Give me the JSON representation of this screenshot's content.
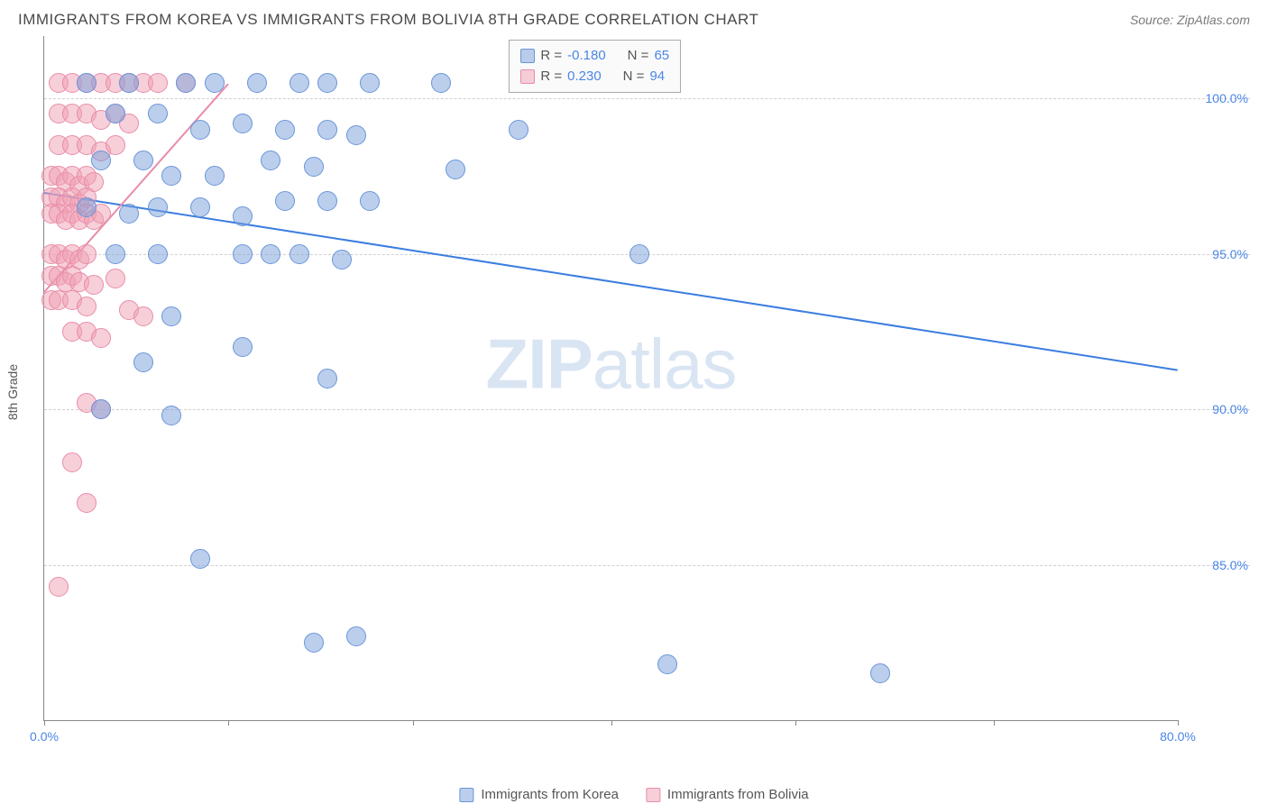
{
  "header": {
    "title": "IMMIGRANTS FROM KOREA VS IMMIGRANTS FROM BOLIVIA 8TH GRADE CORRELATION CHART",
    "source": "Source: ZipAtlas.com"
  },
  "chart": {
    "type": "scatter",
    "ylabel": "8th Grade",
    "xlim": [
      0,
      80
    ],
    "ylim": [
      80,
      102
    ],
    "background_color": "#ffffff",
    "grid_color": "#d0d0d0",
    "yticks": [
      85,
      90,
      95,
      100
    ],
    "ytick_labels": [
      "85.0%",
      "90.0%",
      "95.0%",
      "100.0%"
    ],
    "xticks": [
      0,
      13,
      26,
      40,
      53,
      67,
      80
    ],
    "xtick_labels_shown": {
      "0": "0.0%",
      "80": "80.0%"
    },
    "marker_radius": 11,
    "series": [
      {
        "name": "Immigrants from Korea",
        "color_fill": "rgba(120,160,220,0.5)",
        "color_stroke": "#6a95d8",
        "trend_color": "#3b7de0",
        "R": "-0.180",
        "N": "65",
        "trend": {
          "x1": 0,
          "y1": 97.0,
          "x2": 80,
          "y2": 91.3
        },
        "points": [
          [
            3,
            100.5
          ],
          [
            6,
            100.5
          ],
          [
            10,
            100.5
          ],
          [
            12,
            100.5
          ],
          [
            15,
            100.5
          ],
          [
            18,
            100.5
          ],
          [
            20,
            100.5
          ],
          [
            23,
            100.5
          ],
          [
            28,
            100.5
          ],
          [
            5,
            99.5
          ],
          [
            8,
            99.5
          ],
          [
            11,
            99.0
          ],
          [
            14,
            99.2
          ],
          [
            17,
            99.0
          ],
          [
            20,
            99.0
          ],
          [
            22,
            98.8
          ],
          [
            4,
            98.0
          ],
          [
            7,
            98.0
          ],
          [
            9,
            97.5
          ],
          [
            12,
            97.5
          ],
          [
            16,
            98.0
          ],
          [
            19,
            97.8
          ],
          [
            29,
            97.7
          ],
          [
            33.5,
            99.0
          ],
          [
            42,
            95.0
          ],
          [
            3,
            96.5
          ],
          [
            6,
            96.3
          ],
          [
            8,
            96.5
          ],
          [
            11,
            96.5
          ],
          [
            14,
            96.2
          ],
          [
            17,
            96.7
          ],
          [
            20,
            96.7
          ],
          [
            23,
            96.7
          ],
          [
            5,
            95.0
          ],
          [
            8,
            95.0
          ],
          [
            14,
            95.0
          ],
          [
            16,
            95.0
          ],
          [
            18,
            95.0
          ],
          [
            21,
            94.8
          ],
          [
            9,
            93.0
          ],
          [
            14,
            92.0
          ],
          [
            7,
            91.5
          ],
          [
            20,
            91.0
          ],
          [
            4,
            90.0
          ],
          [
            9,
            89.8
          ],
          [
            11,
            85.2
          ],
          [
            19,
            82.5
          ],
          [
            22,
            82.7
          ],
          [
            59,
            81.5
          ],
          [
            44,
            81.8
          ]
        ]
      },
      {
        "name": "Immigrants from Bolivia",
        "color_fill": "rgba(240,160,180,0.5)",
        "color_stroke": "#e88ca8",
        "trend_color": "#e88ca8",
        "R": "0.230",
        "N": "94",
        "trend": {
          "x1": 0,
          "y1": 93.8,
          "x2": 13,
          "y2": 100.5
        },
        "points": [
          [
            1,
            100.5
          ],
          [
            2,
            100.5
          ],
          [
            3,
            100.5
          ],
          [
            4,
            100.5
          ],
          [
            5,
            100.5
          ],
          [
            6,
            100.5
          ],
          [
            7,
            100.5
          ],
          [
            8,
            100.5
          ],
          [
            10,
            100.5
          ],
          [
            1,
            99.5
          ],
          [
            2,
            99.5
          ],
          [
            3,
            99.5
          ],
          [
            4,
            99.3
          ],
          [
            5,
            99.5
          ],
          [
            6,
            99.2
          ],
          [
            1,
            98.5
          ],
          [
            2,
            98.5
          ],
          [
            3,
            98.5
          ],
          [
            4,
            98.3
          ],
          [
            5,
            98.5
          ],
          [
            0.5,
            97.5
          ],
          [
            1,
            97.5
          ],
          [
            1.5,
            97.3
          ],
          [
            2,
            97.5
          ],
          [
            2.5,
            97.2
          ],
          [
            3,
            97.5
          ],
          [
            3.5,
            97.3
          ],
          [
            0.5,
            96.8
          ],
          [
            1,
            96.8
          ],
          [
            1.5,
            96.6
          ],
          [
            2,
            96.8
          ],
          [
            2.5,
            96.6
          ],
          [
            3,
            96.8
          ],
          [
            0.5,
            96.3
          ],
          [
            1,
            96.3
          ],
          [
            1.5,
            96.1
          ],
          [
            2,
            96.3
          ],
          [
            2.5,
            96.1
          ],
          [
            3,
            96.3
          ],
          [
            3.5,
            96.1
          ],
          [
            4,
            96.3
          ],
          [
            0.5,
            95.0
          ],
          [
            1,
            95.0
          ],
          [
            1.5,
            94.8
          ],
          [
            2,
            95.0
          ],
          [
            2.5,
            94.8
          ],
          [
            3,
            95.0
          ],
          [
            0.5,
            94.3
          ],
          [
            1,
            94.3
          ],
          [
            1.5,
            94.1
          ],
          [
            2,
            94.3
          ],
          [
            2.5,
            94.1
          ],
          [
            3.5,
            94.0
          ],
          [
            5,
            94.2
          ],
          [
            0.5,
            93.5
          ],
          [
            1,
            93.5
          ],
          [
            2,
            93.5
          ],
          [
            3,
            93.3
          ],
          [
            6,
            93.2
          ],
          [
            7,
            93.0
          ],
          [
            2,
            92.5
          ],
          [
            3,
            92.5
          ],
          [
            4,
            92.3
          ],
          [
            3,
            90.2
          ],
          [
            4,
            90.0
          ],
          [
            2,
            88.3
          ],
          [
            3,
            87.0
          ],
          [
            1,
            84.3
          ]
        ]
      }
    ],
    "legend_box": {
      "rows": [
        {
          "swatch": "blue",
          "r_label": "R =",
          "r_val": "-0.180",
          "n_label": "N =",
          "n_val": "65"
        },
        {
          "swatch": "pink",
          "r_label": "R =",
          "r_val": " 0.230",
          "n_label": "N =",
          "n_val": "94"
        }
      ]
    },
    "bottom_legend": [
      {
        "swatch": "blue",
        "label": "Immigrants from Korea"
      },
      {
        "swatch": "pink",
        "label": "Immigrants from Bolivia"
      }
    ],
    "watermark": {
      "bold": "ZIP",
      "light": "atlas"
    }
  }
}
